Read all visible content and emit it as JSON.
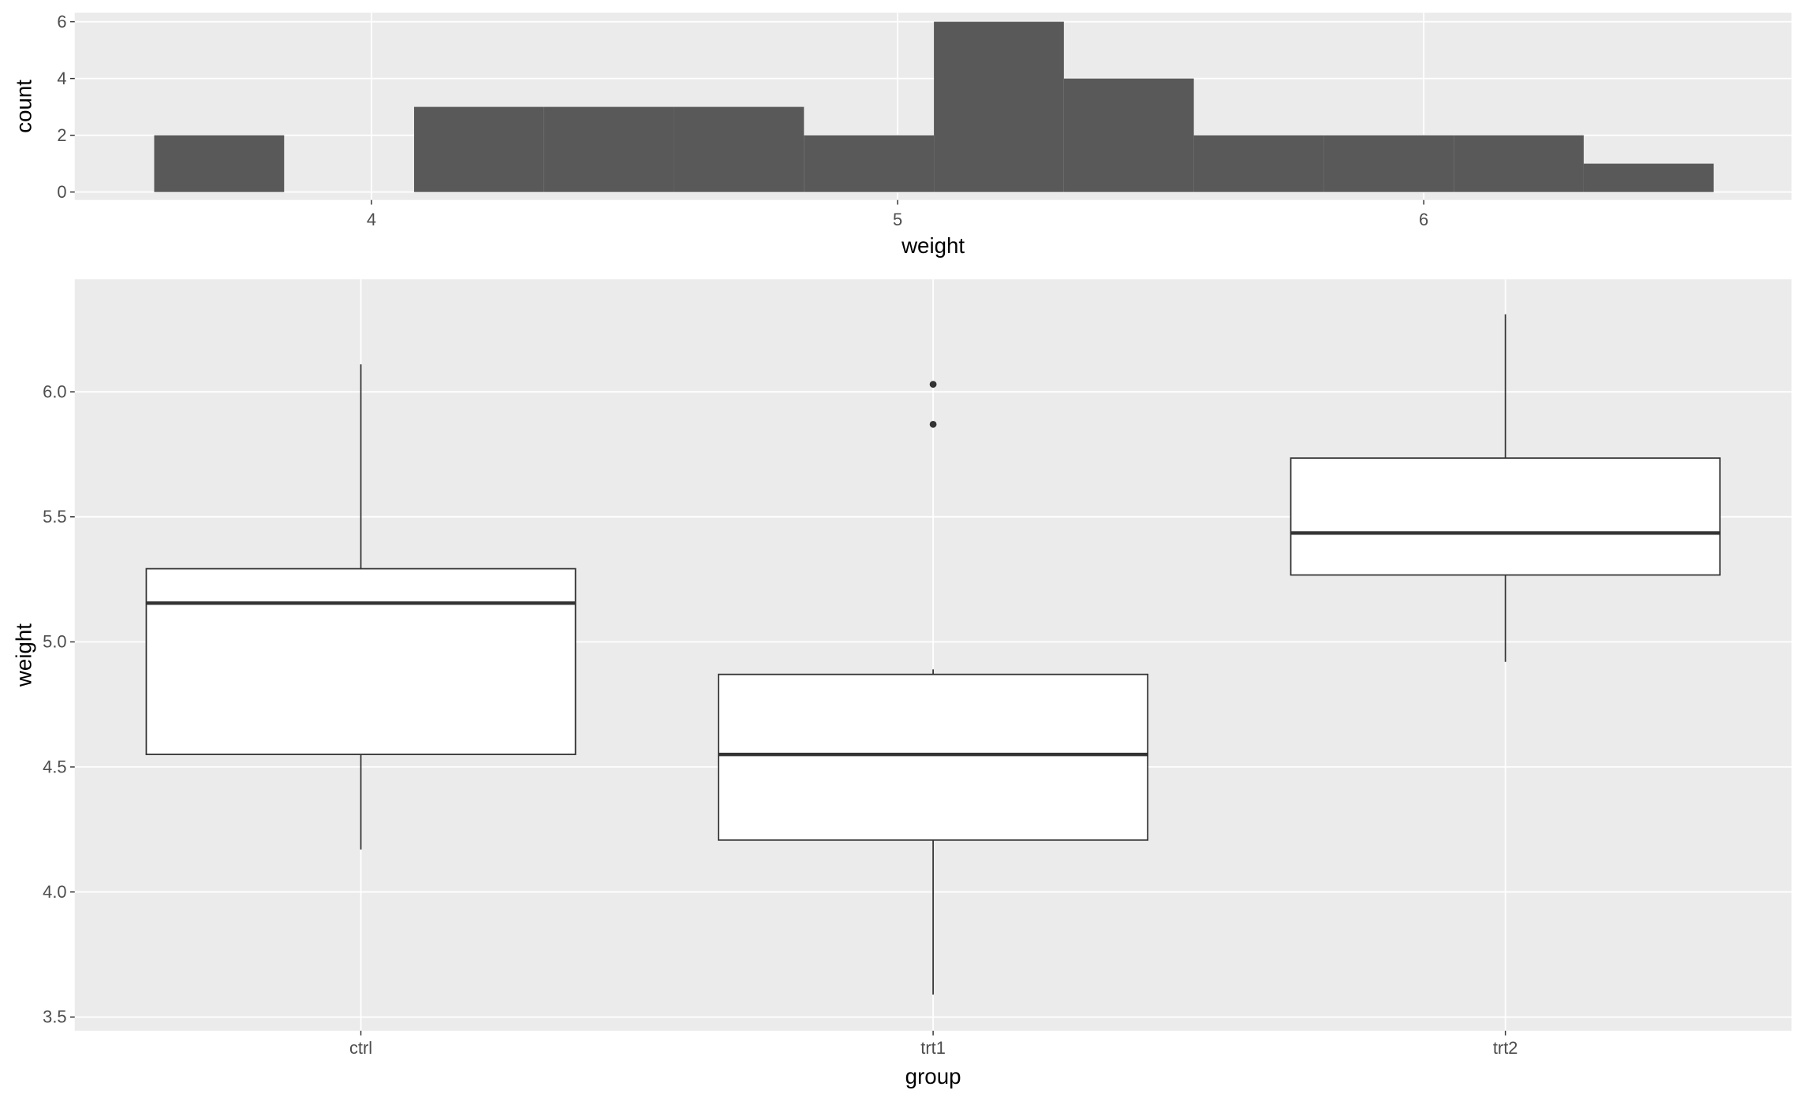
{
  "chart_data": [
    {
      "type": "histogram",
      "bins": [
        3.587,
        3.834,
        4.081,
        4.328,
        4.575,
        4.822,
        5.069,
        5.316,
        5.563,
        5.81,
        6.057,
        6.304,
        6.551
      ],
      "values": [
        2,
        0,
        3,
        3,
        3,
        2,
        6,
        4,
        2,
        2,
        2,
        1
      ],
      "color": "#595959",
      "x_label": "weight",
      "y_label": "count",
      "xlim": [
        3.436,
        6.699
      ],
      "xticks": [
        4,
        5,
        6
      ],
      "ylim": [
        -0.28,
        6.32
      ],
      "yticks": [
        0,
        2,
        4,
        6
      ],
      "grid": true
    },
    {
      "type": "boxplot",
      "categories": [
        "ctrl",
        "trt1",
        "trt2"
      ],
      "min": [
        4.17,
        3.59,
        4.92
      ],
      "q1": [
        4.55,
        4.2075,
        5.2675
      ],
      "median": [
        5.155,
        4.55,
        5.435
      ],
      "q3": [
        5.2925,
        4.87,
        5.735
      ],
      "max": [
        6.11,
        4.89,
        6.31
      ],
      "outliers": [
        [],
        [
          5.87,
          6.03
        ],
        []
      ],
      "x_label": "group",
      "y_label": "weight",
      "ylim": [
        3.445,
        6.45
      ],
      "yticks": [
        {
          "value": 3.5,
          "label": "3.5"
        },
        {
          "value": 4,
          "label": "4.0"
        },
        {
          "value": 4.5,
          "label": "4.5"
        },
        {
          "value": 5,
          "label": "5.0"
        },
        {
          "value": 5.5,
          "label": "5.5"
        },
        {
          "value": 6,
          "label": "6.0"
        }
      ],
      "grid": true
    }
  ]
}
